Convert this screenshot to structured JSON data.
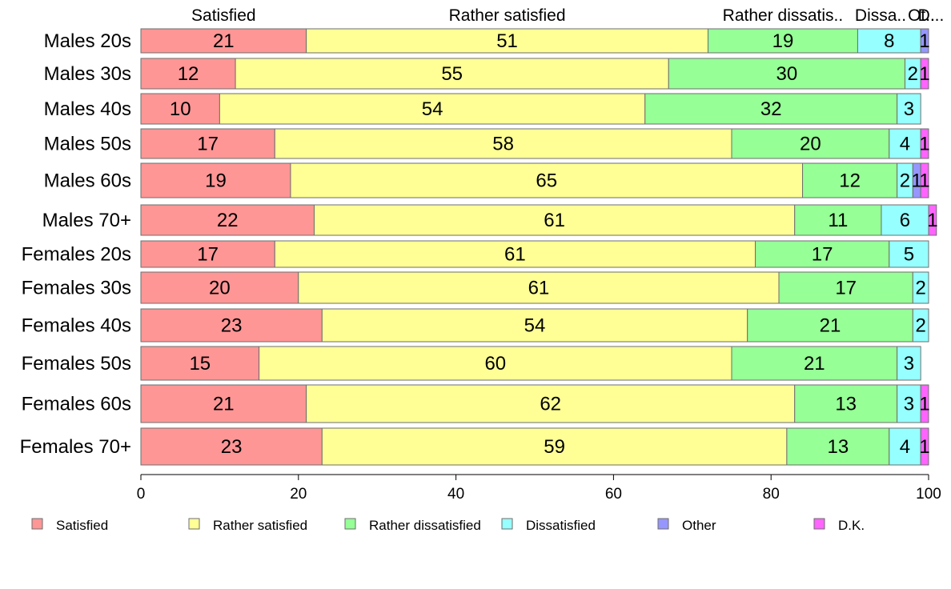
{
  "chart_data": {
    "type": "bar",
    "orientation": "horizontal",
    "stacked": true,
    "categories": [
      "Males 20s",
      "Males 30s",
      "Males 40s",
      "Males 50s",
      "Males 60s",
      "Males 70+",
      "Females 20s",
      "Females 30s",
      "Females 40s",
      "Females 50s",
      "Females 60s",
      "Females 70+"
    ],
    "series": [
      {
        "name": "Satisfied",
        "color": "#ff9696",
        "values": [
          21,
          12,
          10,
          17,
          19,
          22,
          17,
          20,
          23,
          15,
          21,
          23
        ]
      },
      {
        "name": "Rather satisfied",
        "color": "#ffff96",
        "values": [
          51,
          55,
          54,
          58,
          65,
          61,
          61,
          61,
          54,
          60,
          62,
          59
        ]
      },
      {
        "name": "Rather dissatisfied",
        "color": "#96ff96",
        "values": [
          19,
          30,
          32,
          20,
          12,
          11,
          17,
          17,
          21,
          21,
          13,
          13
        ]
      },
      {
        "name": "Dissatisfied",
        "color": "#96ffff",
        "values": [
          8,
          2,
          3,
          4,
          2,
          6,
          5,
          2,
          2,
          3,
          3,
          4
        ]
      },
      {
        "name": "Other",
        "color": "#9696ff",
        "values": [
          1,
          0,
          0,
          0,
          1,
          0,
          0,
          0,
          0,
          0,
          0,
          0
        ]
      },
      {
        "name": "D.K.",
        "color": "#ff64ff",
        "values": [
          0,
          1,
          0,
          1,
          1,
          1,
          0,
          0,
          0,
          0,
          1,
          1
        ]
      }
    ],
    "top_labels": [
      "Satisfied",
      "Rather satisfied",
      "Rather dissatis..",
      "Dissa..",
      "Ot..",
      "D..."
    ],
    "xlim": [
      0,
      100
    ],
    "xticks": [
      "0",
      "20",
      "40",
      "60",
      "80",
      "100"
    ],
    "title": "",
    "xlabel": "",
    "ylabel": "",
    "grid": false,
    "legend": "bottom"
  }
}
